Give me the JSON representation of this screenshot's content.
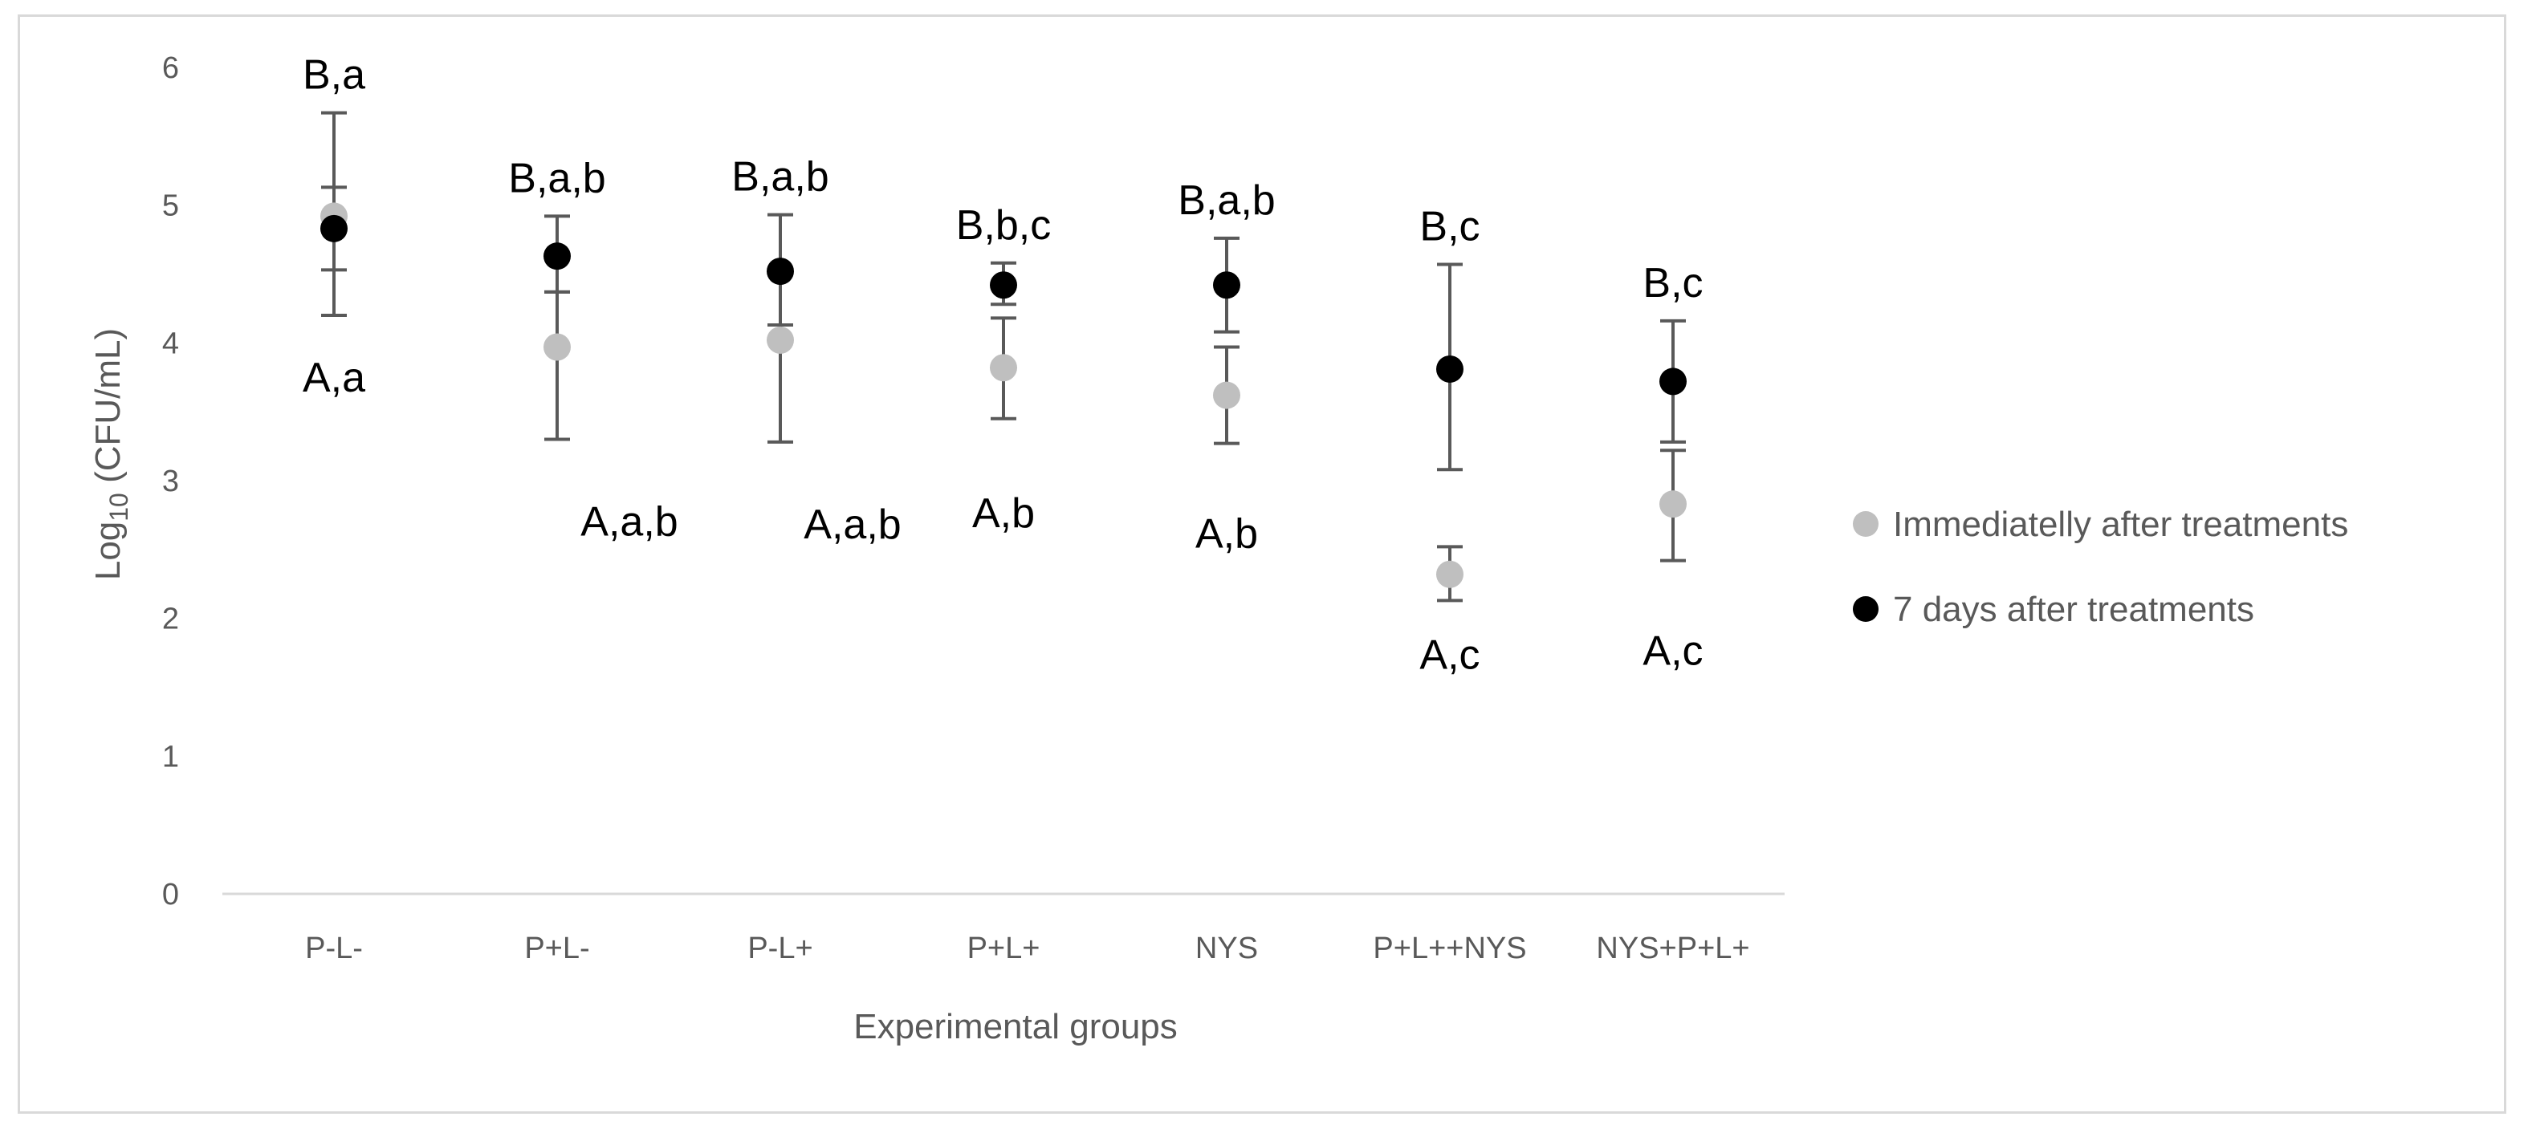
{
  "chart_data": {
    "type": "scatter",
    "xlabel": "Experimental groups",
    "ylabel_main": "Log",
    "ylabel_sub": "10",
    "ylabel_rest": " (CFU/mL)",
    "ylim": [
      0,
      6
    ],
    "yticks": [
      0,
      1,
      2,
      3,
      4,
      5,
      6
    ],
    "categories": [
      "P-L-",
      "P+L-",
      "P-L+",
      "P+L+",
      "NYS",
      "P+L++NYS",
      "NYS+P+L+"
    ],
    "grid": false,
    "legend_position": "right",
    "series": [
      {
        "name": "Immediatelly after treatments",
        "color": "#bfbfbf",
        "values": [
          4.92,
          3.97,
          4.02,
          3.82,
          3.62,
          2.32,
          2.83
        ],
        "err_low": [
          4.2,
          3.3,
          3.28,
          3.45,
          3.27,
          2.13,
          2.42
        ],
        "err_high": [
          5.13,
          4.37,
          4.13,
          4.18,
          3.97,
          2.52,
          3.22
        ],
        "annotations": [
          "A,a",
          "A,a,b",
          "A,a,b",
          "A,b",
          "A,b",
          "A,c",
          "A,c"
        ]
      },
      {
        "name": "7 days after treatments",
        "color": "#000000",
        "values": [
          4.83,
          4.63,
          4.52,
          4.42,
          4.42,
          3.81,
          3.72
        ],
        "err_low": [
          4.53,
          4.37,
          4.13,
          4.28,
          4.08,
          3.08,
          3.28
        ],
        "err_high": [
          5.67,
          4.92,
          4.93,
          4.58,
          4.76,
          4.57,
          4.16
        ],
        "annotations": [
          "B,a",
          "B,a,b",
          "B,a,b",
          "B,b,c",
          "B,a,b",
          "B,c",
          "B,c"
        ]
      }
    ]
  }
}
